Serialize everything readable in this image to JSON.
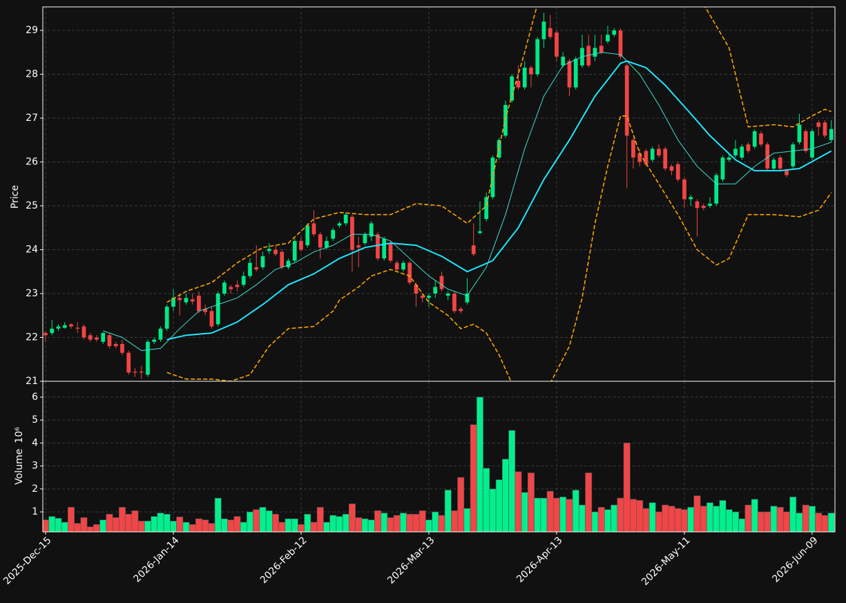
{
  "chart_data": [
    {
      "type": "candlestick",
      "ylabel": "Price",
      "up_color": "#00e887",
      "down_color": "#f24545",
      "xlim": [
        -0.43,
        123.57
      ],
      "ylim": [
        21,
        29.535
      ],
      "yticks": [
        21,
        22,
        23,
        24,
        25,
        26,
        27,
        28,
        29
      ],
      "grid": true,
      "open": [
        22.1,
        22.1,
        22.2,
        22.22,
        22.3,
        22.22,
        22.25,
        22.05,
        22.0,
        21.9,
        22.05,
        21.85,
        21.85,
        21.65,
        21.22,
        21.22,
        21.15,
        21.9,
        21.95,
        22.2,
        22.7,
        22.9,
        22.8,
        22.87,
        22.95,
        22.65,
        22.6,
        22.3,
        23.0,
        23.15,
        23.2,
        23.2,
        23.4,
        23.6,
        23.6,
        23.97,
        24.0,
        23.95,
        23.6,
        23.75,
        24.2,
        24.1,
        24.6,
        24.35,
        24.05,
        24.25,
        24.55,
        24.6,
        24.75,
        24.1,
        24.15,
        24.3,
        24.35,
        23.8,
        24.15,
        23.7,
        23.55,
        23.7,
        23.2,
        22.95,
        22.9,
        23.0,
        23.4,
        22.95,
        23.0,
        22.65,
        22.8,
        24.1,
        24.38,
        24.7,
        25.2,
        26.1,
        26.6,
        27.4,
        27.85,
        27.7,
        28.15,
        28.0,
        28.8,
        29.05,
        28.95,
        28.2,
        28.3,
        27.7,
        28.2,
        28.65,
        28.4,
        28.65,
        28.75,
        28.9,
        29.0,
        28.2,
        26.5,
        26.2,
        26.25,
        26.05,
        26.3,
        26.3,
        25.9,
        25.95,
        25.6,
        25.15,
        25.1,
        25.0,
        25.0,
        25.05,
        25.6,
        26.05,
        26.15,
        26.1,
        26.4,
        26.35,
        26.65,
        26.4,
        25.85,
        26.1,
        25.8,
        25.9,
        26.45,
        26.7,
        26.1,
        26.9,
        26.9,
        26.5
      ],
      "high": [
        22.15,
        22.4,
        22.3,
        22.35,
        22.32,
        22.35,
        22.3,
        22.1,
        22.05,
        22.12,
        22.1,
        21.9,
        21.95,
        21.7,
        21.3,
        21.35,
        21.95,
        22.0,
        22.25,
        22.75,
        23.1,
        23.0,
        23.0,
        23.0,
        23.05,
        22.75,
        22.7,
        23.05,
        23.3,
        23.2,
        23.3,
        23.5,
        23.8,
        24.1,
        23.95,
        24.15,
        24.1,
        24.0,
        23.8,
        24.25,
        24.3,
        24.6,
        24.9,
        24.4,
        24.3,
        24.5,
        24.65,
        24.85,
        24.8,
        24.3,
        24.4,
        24.65,
        24.4,
        24.3,
        24.2,
        23.75,
        23.75,
        23.75,
        23.25,
        23.0,
        23.0,
        23.3,
        23.5,
        23.05,
        23.05,
        22.7,
        23.35,
        24.6,
        25.1,
        25.3,
        26.15,
        26.55,
        27.4,
        28.0,
        28.2,
        28.3,
        28.2,
        28.85,
        29.4,
        29.35,
        29.0,
        28.5,
        28.35,
        28.4,
        28.9,
        28.9,
        28.9,
        28.9,
        29.1,
        29.05,
        29.05,
        28.25,
        26.55,
        26.3,
        26.3,
        26.35,
        26.4,
        26.35,
        25.95,
        26.0,
        25.65,
        25.25,
        25.15,
        25.05,
        25.2,
        25.75,
        26.15,
        26.2,
        26.5,
        26.4,
        26.45,
        26.75,
        26.7,
        26.45,
        26.1,
        26.15,
        25.85,
        26.45,
        27.1,
        26.75,
        26.75,
        26.95,
        26.95,
        26.95
      ],
      "low": [
        21.9,
        22.05,
        22.15,
        22.2,
        22.2,
        22.1,
        21.95,
        21.9,
        21.9,
        21.85,
        21.75,
        21.75,
        21.6,
        21.15,
        21.1,
        21.05,
        21.1,
        21.85,
        21.9,
        22.15,
        22.6,
        22.5,
        22.75,
        22.75,
        22.55,
        22.5,
        22.2,
        22.25,
        22.95,
        23.0,
        23.05,
        23.15,
        23.35,
        23.5,
        23.55,
        23.9,
        23.85,
        23.55,
        23.55,
        23.7,
        23.95,
        24.05,
        24.3,
        23.8,
        24.0,
        24.2,
        24.5,
        24.55,
        23.5,
        23.6,
        24.1,
        24.2,
        23.75,
        23.75,
        23.7,
        23.5,
        23.5,
        23.2,
        22.7,
        22.8,
        22.7,
        22.9,
        23.05,
        22.85,
        22.55,
        22.55,
        22.75,
        23.85,
        24.35,
        24.65,
        25.15,
        26.05,
        26.55,
        27.35,
        27.65,
        27.65,
        27.7,
        27.95,
        28.6,
        28.8,
        28.3,
        28.15,
        27.5,
        27.65,
        28.15,
        28.15,
        28.3,
        28.45,
        28.7,
        28.85,
        28.35,
        25.4,
        25.85,
        25.9,
        25.9,
        26.0,
        26.1,
        25.8,
        25.7,
        25.55,
        24.95,
        25.0,
        24.3,
        24.9,
        24.95,
        25.0,
        25.55,
        26.0,
        26.1,
        26.05,
        26.2,
        26.3,
        26.35,
        25.8,
        25.8,
        25.8,
        25.65,
        25.85,
        26.4,
        26.2,
        26.05,
        26.6,
        26.55,
        26.45
      ],
      "close": [
        22.05,
        22.2,
        22.25,
        22.28,
        22.25,
        22.2,
        22.0,
        21.95,
        21.95,
        22.1,
        21.8,
        21.8,
        21.65,
        21.2,
        21.2,
        21.2,
        21.9,
        21.95,
        22.2,
        22.7,
        22.9,
        22.85,
        22.9,
        22.82,
        22.6,
        22.58,
        22.25,
        23.0,
        23.25,
        23.1,
        23.15,
        23.4,
        23.7,
        23.55,
        23.85,
        24.02,
        23.9,
        23.6,
        23.75,
        24.2,
        24.0,
        24.55,
        24.35,
        24.05,
        24.2,
        24.45,
        24.6,
        24.8,
        24.0,
        24.05,
        24.35,
        24.6,
        23.8,
        24.25,
        23.75,
        23.55,
        23.7,
        23.25,
        23.0,
        22.9,
        22.95,
        23.15,
        23.1,
        23.0,
        22.6,
        22.6,
        23.0,
        23.9,
        24.42,
        25.2,
        26.1,
        26.5,
        27.3,
        27.95,
        27.7,
        28.15,
        28.0,
        28.8,
        29.2,
        28.85,
        28.4,
        28.4,
        27.7,
        28.35,
        28.6,
        28.2,
        28.6,
        28.5,
        28.9,
        29.0,
        28.4,
        26.6,
        26.1,
        26.0,
        25.95,
        26.3,
        26.15,
        25.85,
        25.8,
        25.6,
        25.15,
        25.2,
        24.95,
        24.95,
        25.05,
        25.7,
        26.1,
        26.1,
        26.3,
        26.35,
        26.25,
        26.7,
        26.4,
        25.85,
        26.05,
        25.85,
        25.7,
        26.4,
        26.85,
        26.25,
        26.7,
        26.8,
        26.6,
        26.75
      ],
      "series": [
        {
          "color": "#3fe0d0",
          "width": 1,
          "dashed": false,
          "x": [
            9,
            12,
            15,
            18,
            21,
            24,
            27,
            30,
            33,
            36,
            39,
            42,
            45,
            48,
            51,
            54,
            57,
            60,
            63,
            66,
            69,
            72,
            75,
            78,
            81,
            84,
            87,
            90,
            93,
            96,
            99,
            102,
            105,
            108,
            111,
            114,
            117,
            120,
            123
          ],
          "values": [
            22.15,
            22.0,
            21.7,
            21.75,
            22.2,
            22.6,
            22.75,
            22.9,
            23.2,
            23.55,
            23.7,
            23.95,
            24.1,
            24.35,
            24.35,
            24.2,
            23.8,
            23.4,
            23.1,
            22.95,
            23.6,
            24.8,
            26.3,
            27.5,
            28.2,
            28.4,
            28.5,
            28.45,
            28.0,
            27.3,
            26.5,
            25.9,
            25.5,
            25.5,
            25.9,
            26.2,
            26.25,
            26.3,
            26.45
          ]
        },
        {
          "color": "#1ee8ff",
          "width": 2,
          "dashed": false,
          "x": [
            19,
            22,
            26,
            30,
            34,
            38,
            42,
            46,
            50,
            54,
            58,
            62,
            66,
            70,
            74,
            78,
            82,
            86,
            90,
            91,
            94,
            97,
            101,
            104,
            108,
            111,
            115,
            118,
            123
          ],
          "values": [
            21.95,
            22.05,
            22.1,
            22.35,
            22.75,
            23.2,
            23.45,
            23.8,
            24.05,
            24.15,
            24.1,
            23.85,
            23.5,
            23.75,
            24.5,
            25.6,
            26.5,
            27.5,
            28.25,
            28.3,
            28.15,
            27.75,
            27.1,
            26.6,
            26.05,
            25.8,
            25.8,
            25.85,
            26.25
          ]
        },
        {
          "color": "#ffa500",
          "width": 1.6,
          "dashed": true,
          "x": [
            19,
            22,
            26,
            30,
            34,
            38,
            42,
            46,
            50,
            54,
            58,
            62,
            66,
            69,
            72,
            75,
            77,
            90,
            103,
            107,
            110,
            114,
            117,
            120,
            122,
            123
          ],
          "values": [
            22.8,
            23.05,
            23.25,
            23.7,
            24.05,
            24.15,
            24.7,
            24.85,
            24.8,
            24.8,
            25.05,
            25.0,
            24.6,
            25.0,
            27.0,
            28.5,
            29.6,
            null,
            29.6,
            28.6,
            26.8,
            26.85,
            26.8,
            27.05,
            27.2,
            27.15
          ]
        },
        {
          "color": "#ffa500",
          "width": 1.6,
          "dashed": true,
          "x": [
            19,
            22,
            26,
            29,
            32,
            35,
            38,
            42,
            45,
            46,
            49,
            51,
            54,
            57,
            60,
            63,
            65,
            67,
            69,
            71,
            73,
            76,
            79,
            82,
            84,
            86,
            88,
            90,
            91,
            93,
            96,
            99,
            102,
            105,
            107,
            110,
            114,
            118,
            121,
            123
          ],
          "values": [
            21.2,
            21.05,
            21.05,
            21.0,
            21.15,
            21.8,
            22.2,
            22.25,
            22.6,
            22.85,
            23.15,
            23.4,
            23.55,
            23.4,
            22.8,
            22.5,
            22.2,
            22.3,
            22.1,
            21.6,
            20.95,
            null,
            20.95,
            21.8,
            22.9,
            24.6,
            25.9,
            27.05,
            27.05,
            26.2,
            25.5,
            24.8,
            24.0,
            23.65,
            23.8,
            24.8,
            24.8,
            24.75,
            24.9,
            25.3
          ]
        }
      ]
    },
    {
      "type": "bar",
      "ylabel": "Volume",
      "offset": "10⁶",
      "up_color": "#00f08c",
      "down_color": "#f24545",
      "xlim": [
        -0.43,
        123.57
      ],
      "ylim": [
        0.13,
        6.69
      ],
      "yticks": [
        1,
        2,
        3,
        4,
        5,
        6
      ],
      "grid": true,
      "xticks": [
        {
          "value": 0,
          "label": "2025-Dec-15"
        },
        {
          "value": 20,
          "label": "2026-Jan-14"
        },
        {
          "value": 40,
          "label": "2026-Feb-12"
        },
        {
          "value": 60,
          "label": "2026-Mar-13"
        },
        {
          "value": 80,
          "label": "2026-Apr-13"
        },
        {
          "value": 100,
          "label": "2026-May-11"
        },
        {
          "value": 120,
          "label": "2026-Jun-09"
        }
      ],
      "values": [
        0.65,
        0.8,
        0.72,
        0.55,
        1.2,
        0.5,
        0.75,
        0.35,
        0.45,
        0.65,
        0.9,
        0.75,
        1.2,
        0.9,
        1.05,
        0.6,
        0.6,
        0.8,
        0.95,
        0.9,
        0.6,
        0.78,
        0.55,
        0.45,
        0.7,
        0.65,
        0.5,
        1.6,
        0.7,
        0.65,
        0.8,
        0.55,
        1.0,
        1.1,
        1.2,
        1.05,
        0.9,
        0.55,
        0.7,
        0.7,
        0.45,
        0.9,
        0.55,
        1.2,
        0.55,
        0.85,
        0.8,
        0.9,
        1.35,
        0.75,
        0.7,
        0.65,
        1.05,
        0.95,
        0.75,
        0.85,
        0.95,
        0.9,
        0.9,
        1.05,
        0.65,
        1.0,
        0.85,
        1.95,
        1.05,
        2.5,
        1.15,
        4.8,
        6.0,
        2.9,
        2.0,
        2.4,
        3.3,
        4.55,
        2.75,
        1.85,
        2.7,
        1.6,
        1.6,
        1.9,
        1.6,
        1.65,
        1.55,
        1.95,
        1.3,
        2.7,
        1.0,
        1.2,
        1.1,
        1.3,
        1.6,
        4.0,
        1.55,
        1.5,
        1.15,
        1.4,
        1.0,
        1.3,
        1.25,
        1.15,
        1.1,
        1.2,
        1.7,
        1.25,
        1.4,
        1.25,
        1.5,
        1.1,
        1.0,
        0.7,
        1.3,
        1.55,
        1.0,
        1.0,
        1.25,
        1.2,
        1.0,
        1.65,
        0.95,
        1.3,
        1.25,
        0.95,
        0.85,
        0.95
      ]
    }
  ]
}
